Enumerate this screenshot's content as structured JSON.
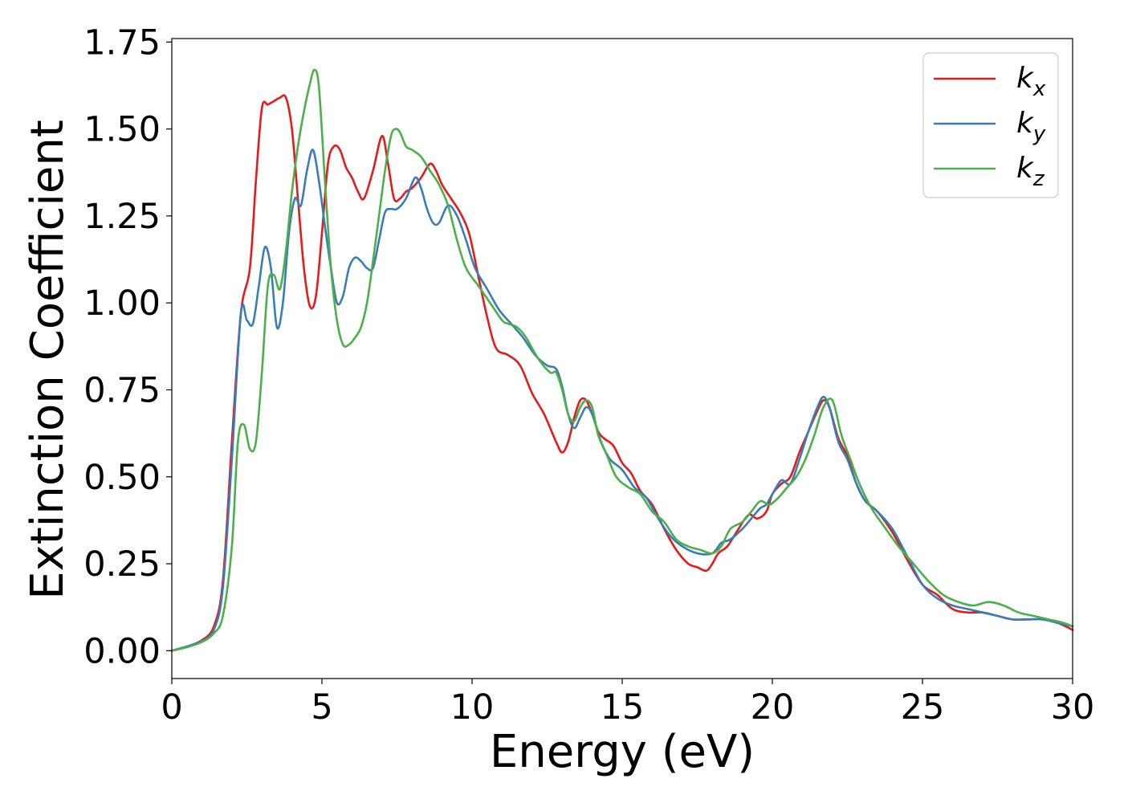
{
  "chart_data": {
    "type": "line",
    "xlabel": "Energy (eV)",
    "ylabel": "Extinction Coefficient",
    "xlim": [
      0,
      30
    ],
    "ylim": [
      -0.08,
      1.76
    ],
    "xticks": [
      0,
      5,
      10,
      15,
      20,
      25,
      30
    ],
    "xtick_labels": [
      "0",
      "5",
      "10",
      "15",
      "20",
      "25",
      "30"
    ],
    "yticks": [
      0.0,
      0.25,
      0.5,
      0.75,
      1.0,
      1.25,
      1.5,
      1.75
    ],
    "ytick_labels": [
      "0.00",
      "0.25",
      "0.50",
      "0.75",
      "1.00",
      "1.25",
      "1.50",
      "1.75"
    ],
    "grid": false,
    "legend_position": "top-right",
    "series": [
      {
        "name": "k_x",
        "label_main": "k",
        "label_sub": "x",
        "color": "#e41a1c",
        "x": [
          0,
          0.5,
          1.0,
          1.4,
          1.7,
          2.0,
          2.3,
          2.6,
          2.8,
          3.0,
          3.2,
          3.4,
          3.6,
          3.8,
          4.0,
          4.2,
          4.4,
          4.6,
          4.8,
          5.0,
          5.2,
          5.4,
          5.6,
          5.8,
          6.0,
          6.2,
          6.4,
          6.7,
          7.0,
          7.2,
          7.4,
          7.6,
          7.8,
          8.0,
          8.3,
          8.6,
          8.8,
          9.0,
          9.3,
          9.6,
          9.9,
          10.2,
          10.5,
          10.8,
          11.2,
          11.6,
          12.0,
          12.4,
          12.8,
          13.0,
          13.2,
          13.4,
          13.6,
          13.8,
          14.0,
          14.2,
          14.4,
          14.7,
          15.0,
          15.3,
          15.6,
          16.0,
          16.4,
          16.8,
          17.2,
          17.5,
          17.8,
          18.0,
          18.2,
          18.5,
          18.8,
          19.2,
          19.5,
          19.8,
          20.0,
          20.3,
          20.6,
          20.9,
          21.2,
          21.5,
          21.7,
          21.9,
          22.2,
          22.5,
          22.8,
          23.1,
          23.5,
          24.0,
          24.5,
          25.0,
          25.5,
          26.0,
          26.5,
          27.0,
          27.5,
          28.0,
          28.5,
          29.0,
          29.5,
          30.0
        ],
        "y": [
          0.0,
          0.012,
          0.03,
          0.07,
          0.2,
          0.6,
          0.97,
          1.1,
          1.35,
          1.56,
          1.57,
          1.58,
          1.59,
          1.59,
          1.5,
          1.3,
          1.1,
          0.99,
          1.02,
          1.2,
          1.4,
          1.45,
          1.44,
          1.39,
          1.36,
          1.32,
          1.3,
          1.38,
          1.48,
          1.4,
          1.3,
          1.3,
          1.32,
          1.33,
          1.36,
          1.4,
          1.38,
          1.34,
          1.3,
          1.26,
          1.2,
          1.08,
          0.96,
          0.87,
          0.85,
          0.82,
          0.74,
          0.68,
          0.6,
          0.57,
          0.6,
          0.67,
          0.72,
          0.72,
          0.68,
          0.63,
          0.61,
          0.59,
          0.54,
          0.51,
          0.46,
          0.42,
          0.35,
          0.29,
          0.25,
          0.24,
          0.23,
          0.25,
          0.28,
          0.3,
          0.34,
          0.39,
          0.38,
          0.4,
          0.45,
          0.48,
          0.5,
          0.57,
          0.63,
          0.69,
          0.72,
          0.7,
          0.61,
          0.56,
          0.48,
          0.43,
          0.4,
          0.34,
          0.26,
          0.19,
          0.16,
          0.12,
          0.11,
          0.11,
          0.1,
          0.09,
          0.09,
          0.09,
          0.08,
          0.06
        ]
      },
      {
        "name": "k_y",
        "label_main": "k",
        "label_sub": "y",
        "color": "#377eb8",
        "x": [
          0,
          0.5,
          1.0,
          1.4,
          1.7,
          2.0,
          2.3,
          2.5,
          2.7,
          2.9,
          3.1,
          3.3,
          3.5,
          3.7,
          3.9,
          4.1,
          4.3,
          4.5,
          4.7,
          4.9,
          5.1,
          5.3,
          5.5,
          5.7,
          5.9,
          6.1,
          6.3,
          6.5,
          6.7,
          6.9,
          7.1,
          7.3,
          7.5,
          7.8,
          8.1,
          8.3,
          8.5,
          8.7,
          8.9,
          9.2,
          9.5,
          9.8,
          10.1,
          10.5,
          10.9,
          11.3,
          11.7,
          12.1,
          12.5,
          12.8,
          13.0,
          13.2,
          13.4,
          13.6,
          13.8,
          14.0,
          14.3,
          14.6,
          15.0,
          15.4,
          15.8,
          16.2,
          16.6,
          17.0,
          17.5,
          18.0,
          18.3,
          18.6,
          19.0,
          19.3,
          19.6,
          19.8,
          20.0,
          20.3,
          20.6,
          20.9,
          21.2,
          21.5,
          21.7,
          21.9,
          22.2,
          22.5,
          22.8,
          23.1,
          23.5,
          24.0,
          24.5,
          25.0,
          25.5,
          26.0,
          26.5,
          27.0,
          27.5,
          28.0,
          28.5,
          29.0,
          29.5,
          30.0
        ],
        "y": [
          0.0,
          0.012,
          0.028,
          0.06,
          0.18,
          0.55,
          0.97,
          0.95,
          0.94,
          1.05,
          1.16,
          1.1,
          0.93,
          1.0,
          1.2,
          1.3,
          1.28,
          1.38,
          1.44,
          1.35,
          1.22,
          1.1,
          1.0,
          1.02,
          1.1,
          1.13,
          1.12,
          1.1,
          1.1,
          1.18,
          1.26,
          1.27,
          1.27,
          1.3,
          1.36,
          1.33,
          1.27,
          1.23,
          1.23,
          1.28,
          1.25,
          1.18,
          1.1,
          1.04,
          0.98,
          0.94,
          0.9,
          0.85,
          0.82,
          0.81,
          0.76,
          0.68,
          0.64,
          0.67,
          0.7,
          0.68,
          0.6,
          0.55,
          0.52,
          0.47,
          0.44,
          0.38,
          0.33,
          0.3,
          0.28,
          0.28,
          0.31,
          0.32,
          0.35,
          0.38,
          0.41,
          0.42,
          0.45,
          0.49,
          0.48,
          0.55,
          0.63,
          0.7,
          0.73,
          0.7,
          0.6,
          0.55,
          0.48,
          0.43,
          0.4,
          0.35,
          0.27,
          0.19,
          0.15,
          0.13,
          0.12,
          0.11,
          0.1,
          0.09,
          0.09,
          0.09,
          0.08,
          0.07
        ]
      },
      {
        "name": "k_z",
        "label_main": "k",
        "label_sub": "z",
        "color": "#4daf4a",
        "x": [
          0,
          0.5,
          1.0,
          1.4,
          1.7,
          2.0,
          2.2,
          2.4,
          2.6,
          2.8,
          3.0,
          3.2,
          3.4,
          3.6,
          3.8,
          4.0,
          4.2,
          4.4,
          4.6,
          4.75,
          4.9,
          5.1,
          5.3,
          5.5,
          5.7,
          5.9,
          6.1,
          6.3,
          6.5,
          6.7,
          6.9,
          7.1,
          7.3,
          7.45,
          7.6,
          7.8,
          8.0,
          8.3,
          8.6,
          8.9,
          9.2,
          9.5,
          9.8,
          10.2,
          10.6,
          11.0,
          11.2,
          11.5,
          11.8,
          12.2,
          12.6,
          12.8,
          13.0,
          13.2,
          13.4,
          13.6,
          13.8,
          14.0,
          14.2,
          14.5,
          14.8,
          15.2,
          15.6,
          16.0,
          16.4,
          16.8,
          17.2,
          17.6,
          18.0,
          18.3,
          18.6,
          19.0,
          19.3,
          19.6,
          19.9,
          20.2,
          20.5,
          20.8,
          21.1,
          21.4,
          21.7,
          22.0,
          22.3,
          22.6,
          22.9,
          23.3,
          23.7,
          24.2,
          24.7,
          25.2,
          25.7,
          26.2,
          26.7,
          27.2,
          27.7,
          28.2,
          28.7,
          29.2,
          29.7,
          30.0
        ],
        "y": [
          0.0,
          0.01,
          0.025,
          0.05,
          0.1,
          0.3,
          0.6,
          0.65,
          0.58,
          0.6,
          0.8,
          1.05,
          1.08,
          1.04,
          1.15,
          1.32,
          1.45,
          1.55,
          1.63,
          1.67,
          1.62,
          1.35,
          1.1,
          0.95,
          0.88,
          0.88,
          0.9,
          0.93,
          1.0,
          1.12,
          1.25,
          1.38,
          1.48,
          1.5,
          1.49,
          1.45,
          1.44,
          1.42,
          1.38,
          1.34,
          1.28,
          1.18,
          1.1,
          1.05,
          1.0,
          0.95,
          0.94,
          0.93,
          0.9,
          0.84,
          0.8,
          0.8,
          0.75,
          0.68,
          0.66,
          0.7,
          0.72,
          0.7,
          0.62,
          0.56,
          0.5,
          0.47,
          0.45,
          0.4,
          0.37,
          0.32,
          0.3,
          0.29,
          0.28,
          0.3,
          0.35,
          0.37,
          0.4,
          0.43,
          0.42,
          0.44,
          0.47,
          0.5,
          0.55,
          0.62,
          0.7,
          0.72,
          0.62,
          0.55,
          0.48,
          0.41,
          0.36,
          0.3,
          0.25,
          0.2,
          0.16,
          0.14,
          0.13,
          0.14,
          0.13,
          0.11,
          0.1,
          0.09,
          0.08,
          0.07
        ]
      }
    ]
  }
}
